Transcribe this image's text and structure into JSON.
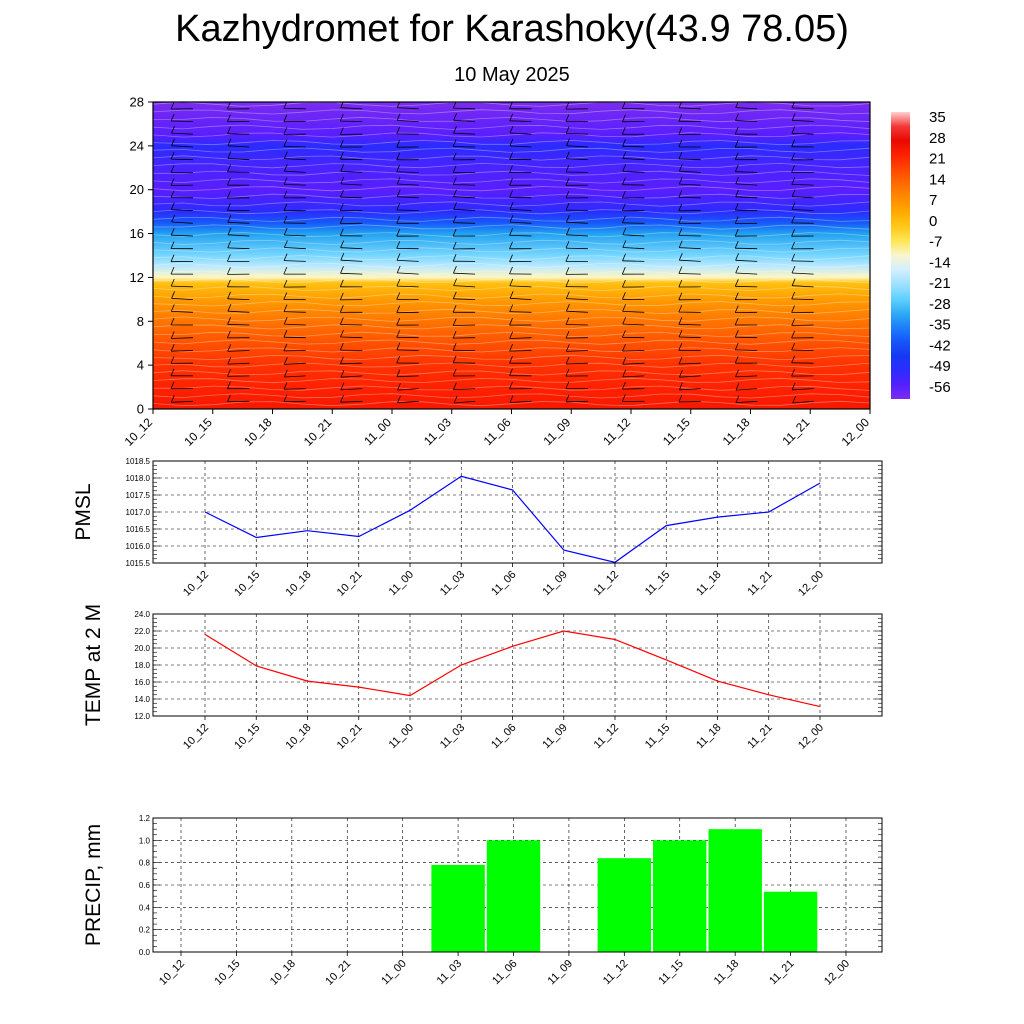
{
  "title": "Kazhydromet for Karashoky(43.9 78.05)",
  "subtitle": "10 May 2025",
  "time_labels": [
    "10_12",
    "10_15",
    "10_18",
    "10_21",
    "11_00",
    "11_03",
    "11_06",
    "11_09",
    "11_12",
    "11_15",
    "11_18",
    "11_21",
    "12_00"
  ],
  "chart_data": [
    {
      "type": "heatmap",
      "title": "",
      "x_categories": [
        "10_12",
        "10_15",
        "10_18",
        "10_21",
        "11_00",
        "11_03",
        "11_06",
        "11_09",
        "11_12",
        "11_15",
        "11_18",
        "11_21",
        "12_00"
      ],
      "ylim": [
        0,
        28
      ],
      "yticks": [
        0,
        4,
        8,
        12,
        16,
        20,
        24,
        28
      ],
      "colorbar_labels": [
        "35",
        "28",
        "21",
        "14",
        "7",
        "0",
        "-7",
        "-14",
        "-21",
        "-28",
        "-35",
        "-42",
        "-49",
        "-56"
      ],
      "colorbar_range": [
        -60,
        38
      ],
      "temperature_profile": [
        {
          "y": 0,
          "t": 25
        },
        {
          "y": 2,
          "t": 23
        },
        {
          "y": 4,
          "t": 21
        },
        {
          "y": 6,
          "t": 17
        },
        {
          "y": 8,
          "t": 12
        },
        {
          "y": 10,
          "t": 6
        },
        {
          "y": 11.5,
          "t": 0
        },
        {
          "y": 12,
          "t": -10
        },
        {
          "y": 13,
          "t": -18
        },
        {
          "y": 14,
          "t": -24
        },
        {
          "y": 16,
          "t": -32
        },
        {
          "y": 17,
          "t": -40
        },
        {
          "y": 18,
          "t": -50
        },
        {
          "y": 20,
          "t": -56
        },
        {
          "y": 22,
          "t": -54
        },
        {
          "y": 24,
          "t": -50
        },
        {
          "y": 25,
          "t": -56
        },
        {
          "y": 28,
          "t": -60
        }
      ],
      "wind_barbs": "black barbs at each time column and level"
    },
    {
      "type": "line",
      "ylabel": "PMSL",
      "x": [
        "10_12",
        "10_15",
        "10_18",
        "10_21",
        "11_00",
        "11_03",
        "11_06",
        "11_09",
        "11_12",
        "11_15",
        "11_18",
        "11_21",
        "12_00"
      ],
      "values": [
        1017.0,
        1016.25,
        1016.45,
        1016.28,
        1017.05,
        1018.05,
        1017.65,
        1015.88,
        1015.52,
        1016.6,
        1016.85,
        1017.0,
        1017.85
      ],
      "ylim": [
        1015.5,
        1018.5
      ],
      "yticks": [
        "1015.5",
        "1016.0",
        "1016.5",
        "1017.0",
        "1017.5",
        "1018.0",
        "1018.5"
      ],
      "color": "#0000ff",
      "grid": true
    },
    {
      "type": "line",
      "ylabel": "TEMP at 2 M",
      "x": [
        "10_12",
        "10_15",
        "10_18",
        "10_21",
        "11_00",
        "11_03",
        "11_06",
        "11_09",
        "11_12",
        "11_15",
        "11_18",
        "11_21",
        "12_00"
      ],
      "values": [
        21.6,
        17.9,
        16.1,
        15.4,
        14.4,
        18.0,
        20.2,
        22.0,
        21.0,
        18.6,
        16.1,
        14.5,
        13.1
      ],
      "ylim": [
        12.0,
        24.0
      ],
      "yticks": [
        "12.0",
        "14.0",
        "16.0",
        "18.0",
        "20.0",
        "22.0",
        "24.0"
      ],
      "color": "#ff0000",
      "grid": true
    },
    {
      "type": "bar",
      "ylabel": "PRECIP, mm",
      "categories": [
        "10_12",
        "10_15",
        "10_18",
        "10_21",
        "11_00",
        "11_03",
        "11_06",
        "11_09",
        "11_12",
        "11_15",
        "11_18",
        "11_21",
        "12_00"
      ],
      "values": [
        0,
        0,
        0,
        0,
        0,
        0.78,
        1.0,
        0,
        0.84,
        1.0,
        1.1,
        0.54,
        0
      ],
      "ylim": [
        0,
        1.2
      ],
      "yticks": [
        "0.0",
        "0.2",
        "0.4",
        "0.6",
        "0.8",
        "1.0",
        "1.2"
      ],
      "color": "#00ff00",
      "grid": true
    }
  ]
}
